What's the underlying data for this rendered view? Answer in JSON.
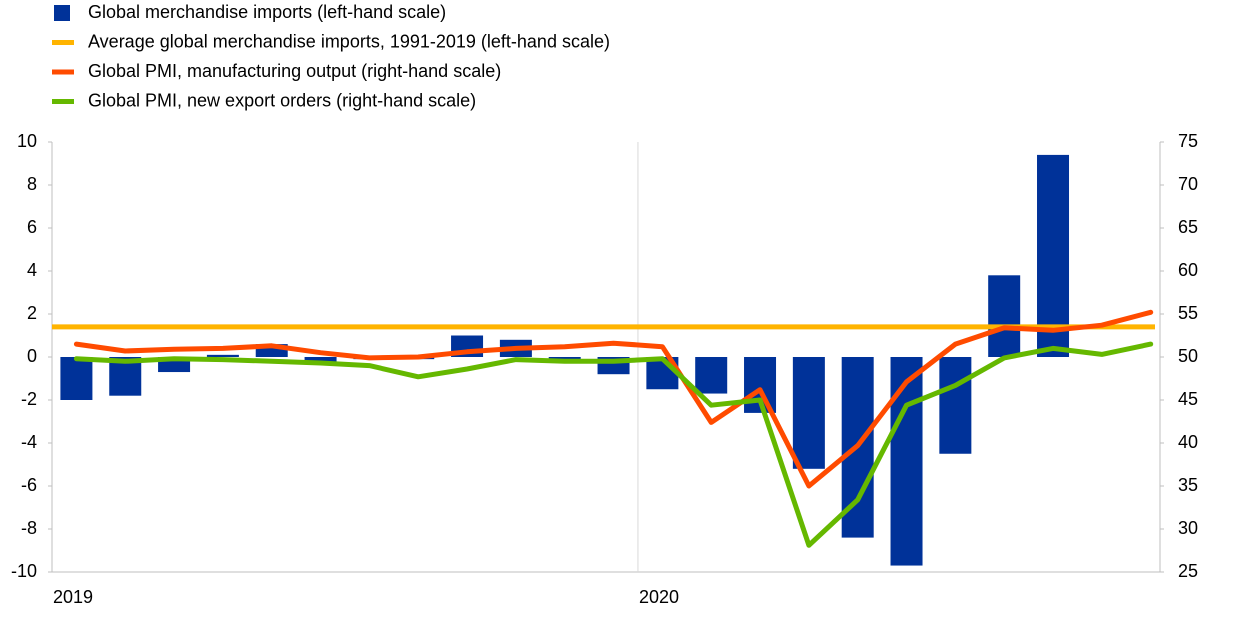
{
  "chart_data": {
    "type": "bar-line",
    "categories": [
      "2019",
      null,
      null,
      null,
      null,
      null,
      null,
      null,
      null,
      null,
      null,
      null,
      "2020",
      null,
      null,
      null,
      null,
      null,
      null,
      null,
      null,
      null,
      null
    ],
    "bars": {
      "name": "Global merchandise imports (left-hand scale)",
      "color": "#003299",
      "values": [
        -2.0,
        -1.8,
        -0.7,
        0.1,
        0.6,
        -0.3,
        -0.1,
        -0.1,
        1.0,
        0.8,
        -0.1,
        -0.8,
        -1.5,
        -1.7,
        -2.6,
        -5.2,
        -8.4,
        -9.7,
        -4.5,
        3.8,
        9.4,
        null,
        null
      ]
    },
    "average": {
      "name": "Average global merchandise imports, 1991-2019 (left-hand scale)",
      "color": "#ffb400",
      "value": 1.4
    },
    "series": [
      {
        "name": "Global PMI, manufacturing output (right-hand scale)",
        "color": "#ff4b00",
        "axis": "y2",
        "values": [
          51.5,
          50.7,
          50.9,
          51.0,
          51.3,
          50.5,
          49.9,
          50.0,
          50.6,
          51.0,
          51.2,
          51.6,
          51.2,
          42.4,
          46.2,
          35.0,
          39.7,
          47.1,
          51.5,
          53.4,
          53.1,
          53.7,
          55.2
        ]
      },
      {
        "name": "Global PMI, new export orders (right-hand scale)",
        "color": "#65b800",
        "axis": "y2",
        "values": [
          49.8,
          49.5,
          49.8,
          49.7,
          49.5,
          49.3,
          49.0,
          47.7,
          48.6,
          49.7,
          49.5,
          49.5,
          49.8,
          44.4,
          45.0,
          28.1,
          33.4,
          44.4,
          46.7,
          49.9,
          51.0,
          50.3,
          51.5
        ]
      }
    ],
    "ylim": [
      -10,
      10
    ],
    "yticks": [
      -10,
      -8,
      -6,
      -4,
      -2,
      0,
      2,
      4,
      6,
      8,
      10
    ],
    "y2lim": [
      25,
      75
    ],
    "y2ticks": [
      25,
      30,
      35,
      40,
      45,
      50,
      55,
      60,
      65,
      70,
      75
    ]
  }
}
